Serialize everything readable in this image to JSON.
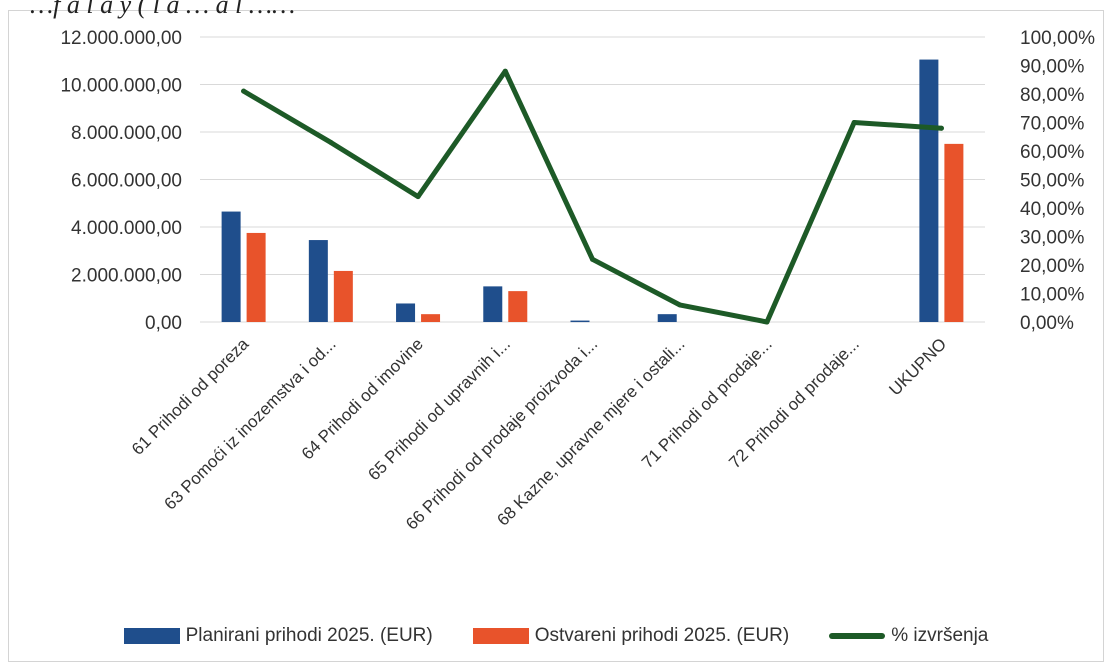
{
  "caption_fragment": "…f a l a y ( l a …  a l …… ",
  "chart_data": {
    "type": "bar",
    "categories": [
      "61 Prihodi od poreza",
      "63 Pomoći iz inozemstva i od...",
      "64 Prihodi od imovine",
      "65 Prihodi od upravnih i...",
      "66 Prihodi od prodaje proizvoda i...",
      "68 Kazne, upravne mjere i ostali...",
      "71 Prihodi od prodaje...",
      "72 Prihodi od prodaje...",
      "UKUPNO"
    ],
    "series": [
      {
        "name": "Planirani prihodi 2025. (EUR)",
        "type": "bar",
        "axis": "left",
        "color": "#1f4e8c",
        "values": [
          4650000,
          3450000,
          780000,
          1500000,
          60000,
          330000,
          0,
          0,
          11050000
        ]
      },
      {
        "name": "Ostvareni prihodi 2025. (EUR)",
        "type": "bar",
        "axis": "left",
        "color": "#e8532b",
        "values": [
          3750000,
          2150000,
          330000,
          1300000,
          0,
          0,
          0,
          0,
          7500000
        ]
      },
      {
        "name": "% izvršenja",
        "type": "line",
        "axis": "right",
        "color": "#1d5a27",
        "values": [
          81,
          63,
          44,
          88,
          22,
          6,
          0,
          70,
          68
        ]
      }
    ],
    "y_left": {
      "min": 0,
      "max": 12000000,
      "step": 2000000,
      "ticks": [
        "0,00",
        "2.000.000,00",
        "4.000.000,00",
        "6.000.000,00",
        "8.000.000,00",
        "10.000.000,00",
        "12.000.000,00"
      ]
    },
    "y_right": {
      "min": 0,
      "max": 100,
      "step": 10,
      "ticks": [
        "0,00%",
        "10,00%",
        "20,00%",
        "30,00%",
        "40,00%",
        "50,00%",
        "60,00%",
        "70,00%",
        "80,00%",
        "90,00%",
        "100,00%"
      ]
    },
    "grid": true,
    "legend_position": "bottom"
  }
}
